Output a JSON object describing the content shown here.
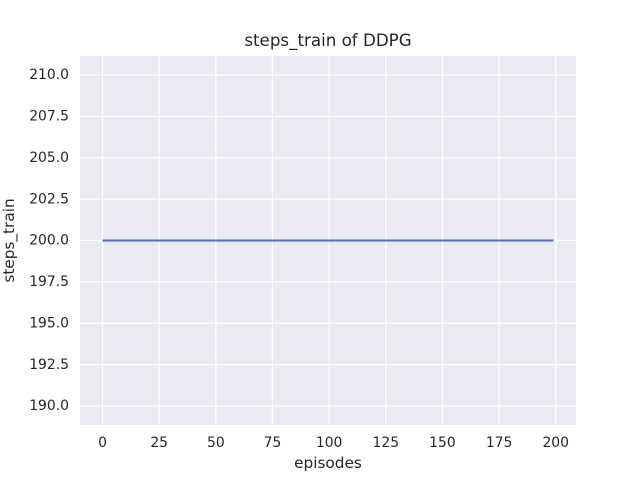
{
  "colors": {
    "figure_bg": "#ffffff",
    "plot_bg": "#eaeaf2",
    "grid": "#ffffff",
    "line": "#4c72b0",
    "text": "#262626"
  },
  "chart_data": {
    "type": "line",
    "title": "steps_train of DDPG",
    "xlabel": "episodes",
    "ylabel": "steps_train",
    "xlim": [
      -9.95,
      208.95
    ],
    "ylim": [
      188.85,
      211.15
    ],
    "xticks": [
      0,
      25,
      50,
      75,
      100,
      125,
      150,
      175,
      200
    ],
    "xtick_labels": [
      "0",
      "25",
      "50",
      "75",
      "100",
      "125",
      "150",
      "175",
      "200"
    ],
    "yticks": [
      190.0,
      192.5,
      195.0,
      197.5,
      200.0,
      202.5,
      205.0,
      207.5,
      210.0
    ],
    "ytick_labels": [
      "190.0",
      "192.5",
      "195.0",
      "197.5",
      "200.0",
      "202.5",
      "205.0",
      "207.5",
      "210.0"
    ],
    "grid": true,
    "legend": "none",
    "series": [
      {
        "name": "steps_train",
        "color": "#4c72b0",
        "x": [
          0,
          199
        ],
        "y": [
          200,
          200
        ],
        "description": "Constant line: steps_train = 200 for every episode from 0 to 199"
      }
    ]
  }
}
